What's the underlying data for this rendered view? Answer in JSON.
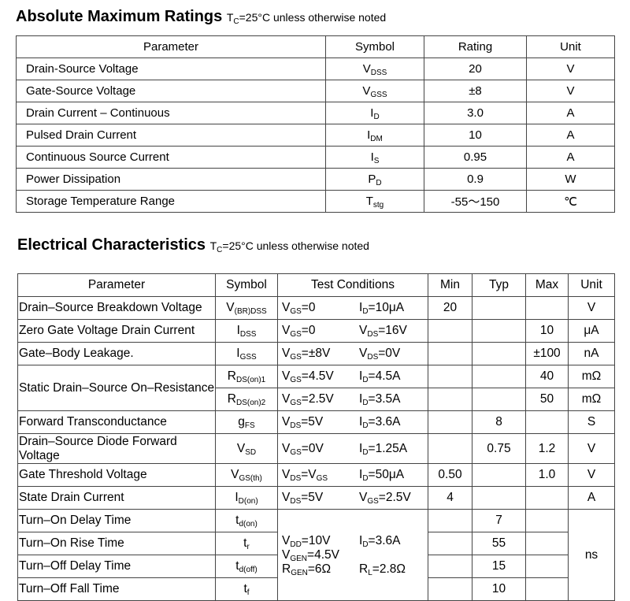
{
  "amr": {
    "title": "Absolute Maximum Ratings",
    "note": [
      "T",
      "C",
      "=25°C unless otherwise noted"
    ],
    "headers": [
      "Parameter",
      "Symbol",
      "Rating",
      "Unit"
    ],
    "rows": [
      [
        "Drain-Source Voltage",
        [
          "V",
          "DSS"
        ],
        "20",
        "V"
      ],
      [
        "Gate-Source Voltage",
        [
          "V",
          "GSS"
        ],
        "±8",
        "V"
      ],
      [
        "Drain Current – Continuous",
        [
          "I",
          "D"
        ],
        "3.0",
        "A"
      ],
      [
        "Pulsed Drain Current",
        [
          "I",
          "DM"
        ],
        "10",
        "A"
      ],
      [
        "Continuous Source Current",
        [
          "I",
          "S"
        ],
        "0.95",
        "A"
      ],
      [
        "Power Dissipation",
        [
          "P",
          "D"
        ],
        "0.9",
        "W"
      ],
      [
        "Storage Temperature Range",
        [
          "T",
          "stg"
        ],
        "-55～150",
        "℃"
      ]
    ]
  },
  "ec": {
    "title": "Electrical Characteristics",
    "note": [
      "T",
      "C",
      "=25°C unless otherwise noted"
    ],
    "headers": [
      "Parameter",
      "Symbol",
      "Test Conditions",
      "Min",
      "Typ",
      "Max",
      "Unit"
    ],
    "rows": [
      {
        "p": "Drain–Source Breakdown Voltage",
        "s": [
          "V",
          "(BR)DSS"
        ],
        "c1": [
          "V",
          "GS",
          "=0"
        ],
        "c2": [
          "I",
          "D",
          "=10μA"
        ],
        "min": "20",
        "typ": "",
        "max": "",
        "u": "V"
      },
      {
        "p": "Zero Gate Voltage Drain Current",
        "s": [
          "I",
          "DSS"
        ],
        "c1": [
          "V",
          "GS",
          "=0"
        ],
        "c2": [
          "V",
          "DS",
          "=16V"
        ],
        "min": "",
        "typ": "",
        "max": "10",
        "u": "μA"
      },
      {
        "p": "Gate–Body Leakage.",
        "s": [
          "I",
          "GSS"
        ],
        "c1": [
          "V",
          "GS",
          "=±8V"
        ],
        "c2": [
          "V",
          "DS",
          "=0V"
        ],
        "min": "",
        "typ": "",
        "max": "±100",
        "u": "nA"
      },
      {
        "p": "Static Drain–Source On–Resistance",
        "span": 2,
        "s": [
          "R",
          "DS(on)1"
        ],
        "c1": [
          "V",
          "GS",
          "=4.5V"
        ],
        "c2": [
          "I",
          "D",
          "=4.5A"
        ],
        "min": "",
        "typ": "",
        "max": "40",
        "u": "mΩ"
      },
      {
        "s": [
          "R",
          "DS(on)2"
        ],
        "c1": [
          "V",
          "GS",
          "=2.5V"
        ],
        "c2": [
          "I",
          "D",
          "=3.5A"
        ],
        "min": "",
        "typ": "",
        "max": "50",
        "u": "mΩ"
      },
      {
        "p": "Forward Transconductance",
        "s": [
          "g",
          "FS"
        ],
        "c1": [
          "V",
          "DS",
          "=5V"
        ],
        "c2": [
          "I",
          "D",
          "=3.6A"
        ],
        "min": "",
        "typ": "8",
        "max": "",
        "u": "S"
      },
      {
        "p": "Drain–Source Diode Forward Voltage",
        "s": [
          "V",
          "SD"
        ],
        "c1": [
          "V",
          "GS",
          "=0V"
        ],
        "c2": [
          "I",
          "D",
          "=1.25A"
        ],
        "min": "",
        "typ": "0.75",
        "max": "1.2",
        "u": "V"
      },
      {
        "p": "Gate Threshold Voltage",
        "s": [
          "V",
          "GS(th)"
        ],
        "c1": [
          "V",
          "DS",
          "=V",
          "GS"
        ],
        "c2": [
          "I",
          "D",
          "=50μA"
        ],
        "min": "0.50",
        "typ": "",
        "max": "1.0",
        "u": "V"
      },
      {
        "p": "State Drain Current",
        "s": [
          "I",
          "D(on)"
        ],
        "c1": [
          "V",
          "DS",
          "=5V"
        ],
        "c2": [
          "V",
          "GS",
          "=2.5V"
        ],
        "min": "4",
        "typ": "",
        "max": "",
        "u": "A"
      }
    ],
    "switching": {
      "rows": [
        {
          "p": "Turn–On Delay Time",
          "s": [
            "t",
            "d(on)"
          ],
          "typ": "7"
        },
        {
          "p": "Turn–On Rise Time",
          "s": [
            "t",
            "r"
          ],
          "typ": "55"
        },
        {
          "p": "Turn–Off Delay Time",
          "s": [
            "t",
            "d(off)"
          ],
          "typ": "15"
        },
        {
          "p": "Turn–Off Fall Time",
          "s": [
            "t",
            "f"
          ],
          "typ": "10"
        }
      ],
      "conditions": [
        [
          [
            "V",
            "DD",
            "=10V"
          ],
          [
            "I",
            "D",
            "=3.6A"
          ]
        ],
        [
          [
            "V",
            "GEN",
            "=4.5V"
          ],
          null
        ],
        [
          [
            "R",
            "GEN",
            "=6Ω"
          ],
          [
            "R",
            "L",
            "=2.8Ω"
          ]
        ]
      ],
      "unit": "ns"
    }
  }
}
